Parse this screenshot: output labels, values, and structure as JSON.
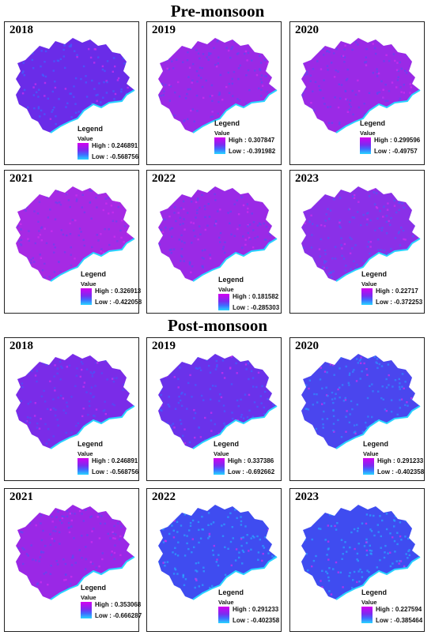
{
  "sections": [
    {
      "title": "Pre-monsoon",
      "panels": [
        {
          "year": "2018",
          "legend_title": "Legend",
          "value_label": "Value",
          "high": "High : 0.246891",
          "low": "Low : -0.568756",
          "tone": "#6a2ce8",
          "speckle": "#3f63ff"
        },
        {
          "year": "2019",
          "legend_title": "Legend",
          "value_label": "Value",
          "high": "High : 0.307847",
          "low": "Low : -0.391982",
          "tone": "#9a2ae6",
          "speckle": "#5a4cf2"
        },
        {
          "year": "2020",
          "legend_title": "Legend",
          "value_label": "Value",
          "high": "High : 0.299596",
          "low": "Low : -0.49757",
          "tone": "#9a2ae6",
          "speckle": "#5a4cf2"
        },
        {
          "year": "2021",
          "legend_title": "Legend",
          "value_label": "Value",
          "high": "High : 0.326913",
          "low": "Low : -0.422058",
          "tone": "#a62ae4",
          "speckle": "#6a44f0"
        },
        {
          "year": "2022",
          "legend_title": "Legend",
          "value_label": "Value",
          "high": "High : 0.181582",
          "low": "Low : -0.285303",
          "tone": "#9a2ae6",
          "speckle": "#5a4cf2"
        },
        {
          "year": "2023",
          "legend_title": "Legend",
          "value_label": "Value",
          "high": "High : 0.22717",
          "low": "Low : -0.372253",
          "tone": "#8a30e8",
          "speckle": "#4a5cf6"
        }
      ]
    },
    {
      "title": "Post-monsoon",
      "panels": [
        {
          "year": "2018",
          "legend_title": "Legend",
          "value_label": "Value",
          "high": "High : 0.246891",
          "low": "Low : -0.568756",
          "tone": "#7a2ce8",
          "speckle": "#4a52f8"
        },
        {
          "year": "2019",
          "legend_title": "Legend",
          "value_label": "Value",
          "high": "High : 0.337386",
          "low": "Low : -0.692662",
          "tone": "#6a32ea",
          "speckle": "#3f63ff"
        },
        {
          "year": "2020",
          "legend_title": "Legend",
          "value_label": "Value",
          "high": "High : 0.291233",
          "low": "Low : -0.402358",
          "tone": "#4a46ee",
          "speckle": "#2f8cff"
        },
        {
          "year": "2021",
          "legend_title": "Legend",
          "value_label": "Value",
          "high": "High : 0.353068",
          "low": "Low : -0.666287",
          "tone": "#9a28e6",
          "speckle": "#5a4cf2"
        },
        {
          "year": "2022",
          "legend_title": "Legend",
          "value_label": "Value",
          "high": "High : 0.291233",
          "low": "Low : -0.402358",
          "tone": "#3f4cf0",
          "speckle": "#2aa6ff"
        },
        {
          "year": "2023",
          "legend_title": "Legend",
          "value_label": "Value",
          "high": "High : 0.227594",
          "low": "Low : -0.385464",
          "tone": "#3f4cf0",
          "speckle": "#2aa6ff"
        }
      ]
    }
  ]
}
